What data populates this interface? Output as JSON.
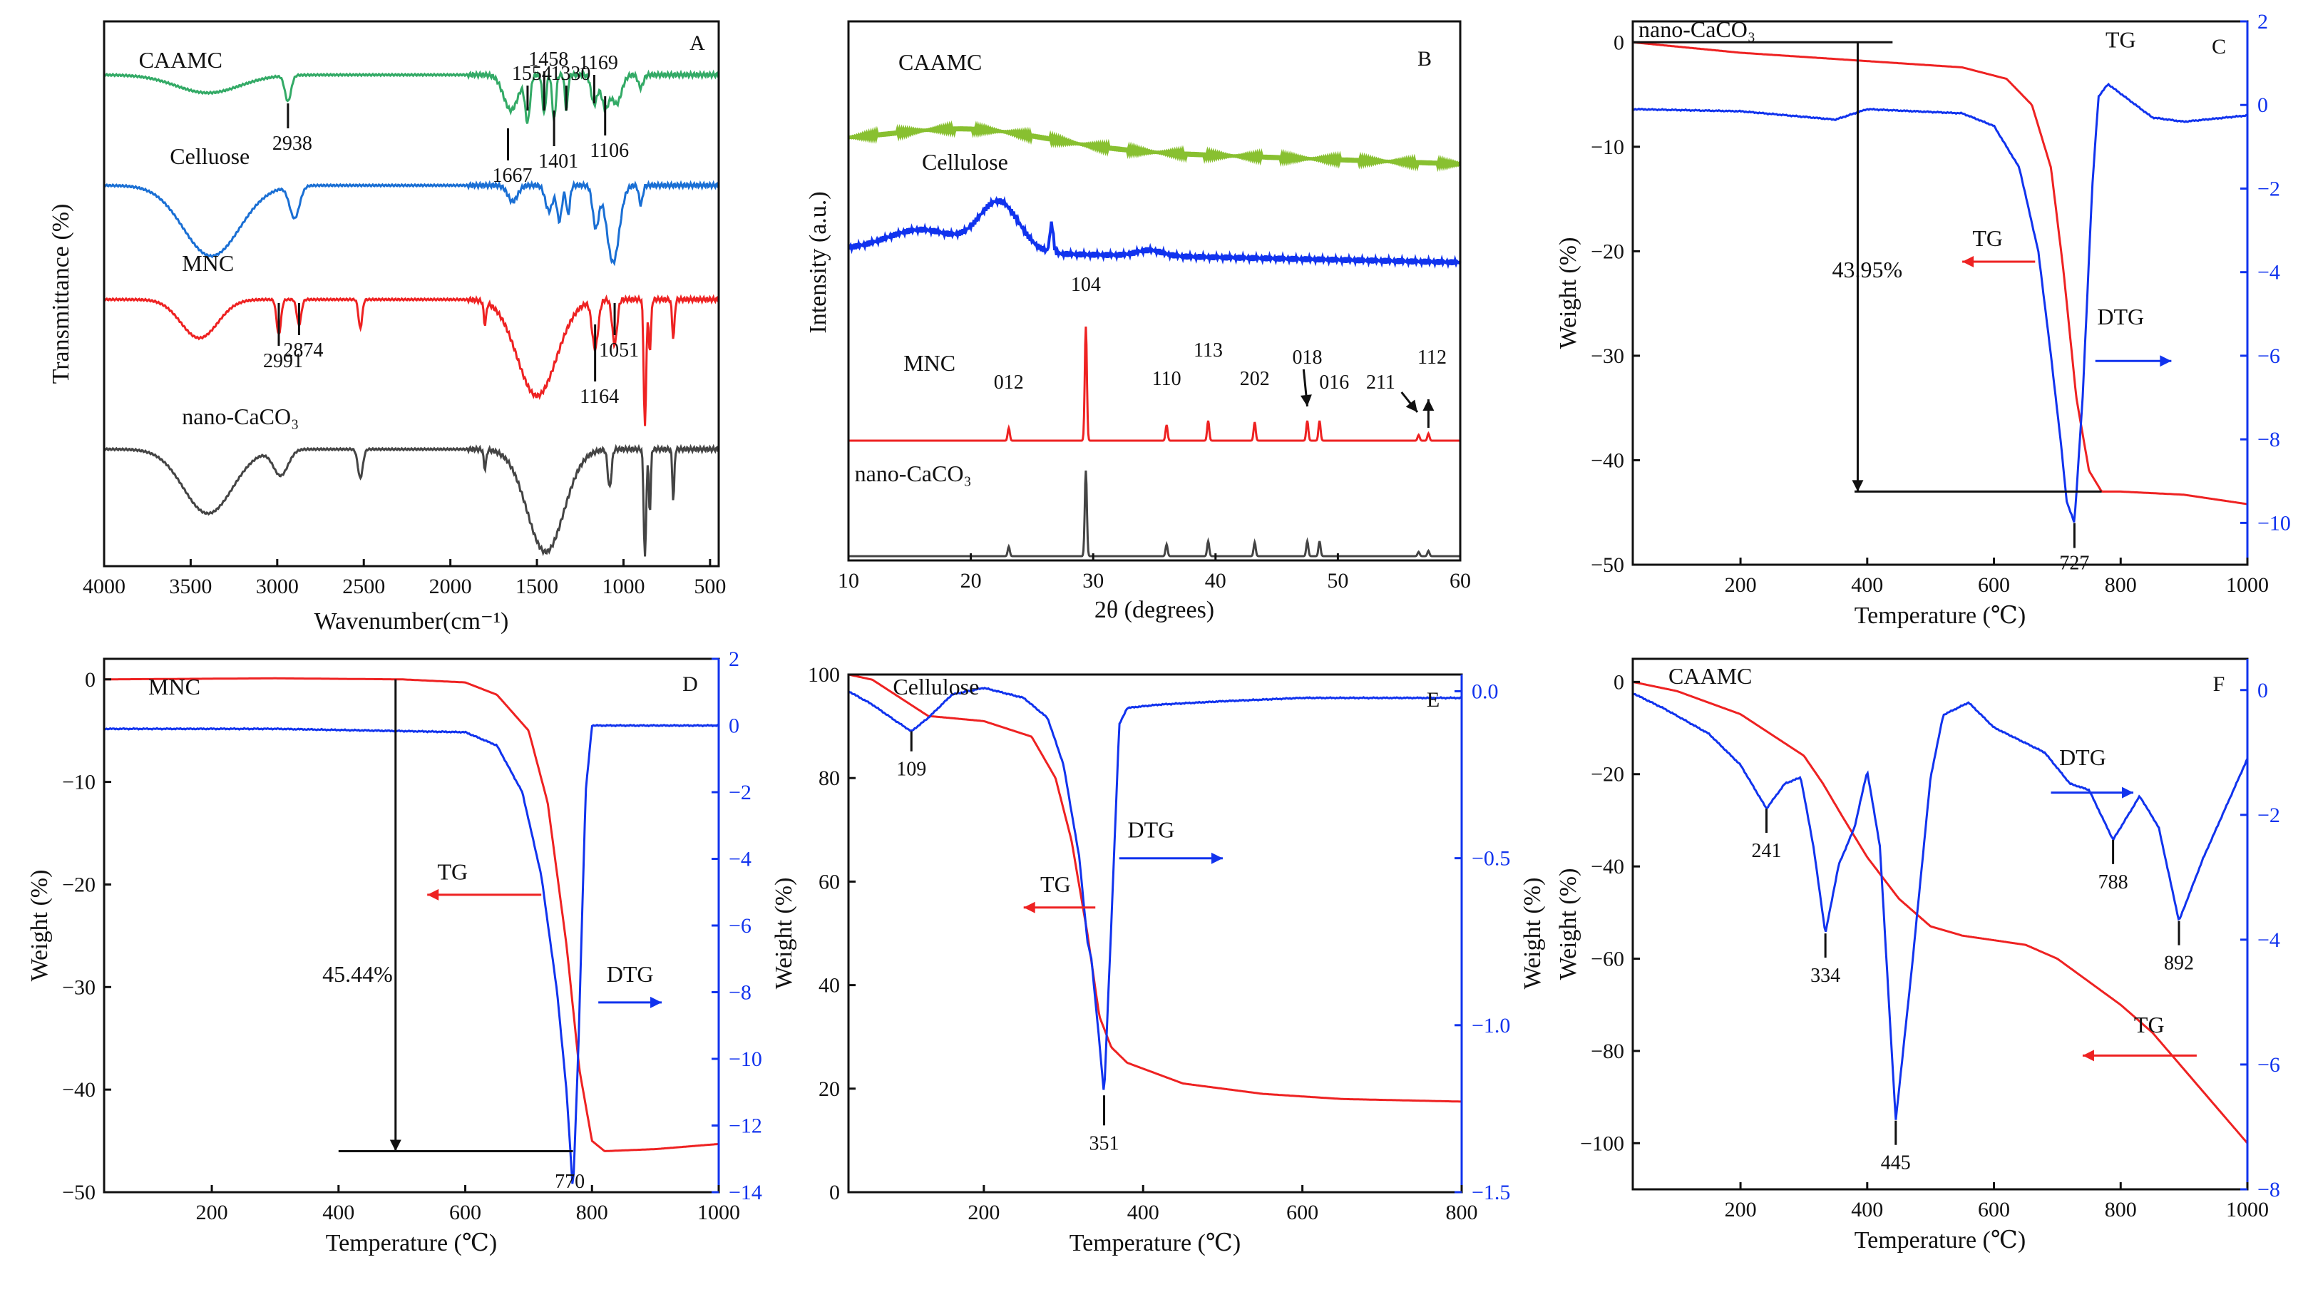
{
  "figure": {
    "description_panels": [
      "A",
      "B",
      "C",
      "D",
      "E",
      "F"
    ]
  },
  "colors": {
    "axis": "#111111",
    "red": "#ee2222",
    "blue": "#1133ee",
    "green": "#33aa66",
    "ftir_blue": "#1a6fd4",
    "lime": "#88c030",
    "dark": "#444444"
  },
  "chart_data": [
    {
      "panel": "A",
      "type": "line",
      "title": "",
      "xlabel": "Wavenumber(cm⁻¹)",
      "ylabel": "Transmittance (%)",
      "xlim": [
        4000,
        450
      ],
      "x_reversed": true,
      "ticks": [
        4000,
        3500,
        3000,
        2500,
        2000,
        1500,
        1000,
        500
      ],
      "series": [
        {
          "name": "CAAMC",
          "color": "green",
          "offset": 0.88,
          "peaks": [
            2938,
            1667,
            1554,
            1458,
            1401,
            1330,
            1169,
            1106
          ]
        },
        {
          "name": "Celluose",
          "color": "ftir_blue",
          "offset": 0.66,
          "peaks": []
        },
        {
          "name": "MNC",
          "color": "red",
          "offset": 0.44,
          "peaks": [
            2991,
            2874,
            1164,
            1051
          ]
        },
        {
          "name": "nano-CaCO₃",
          "color": "dark",
          "offset": 0.2,
          "peaks": []
        }
      ],
      "annotations": [
        "2938",
        "1667",
        "1554",
        "1458",
        "1401",
        "1330",
        "1169",
        "1106",
        "2991",
        "2874",
        "1164",
        "1051"
      ]
    },
    {
      "panel": "B",
      "type": "line",
      "title": "",
      "xlabel": "2θ (degrees)",
      "ylabel": "Intensity (a.u.)",
      "xlim": [
        10,
        60
      ],
      "ticks": [
        10,
        20,
        30,
        40,
        50,
        60
      ],
      "series": [
        {
          "name": "CAAMC",
          "color": "lime"
        },
        {
          "name": "Cellulose",
          "color": "blue"
        },
        {
          "name": "MNC",
          "color": "red"
        },
        {
          "name": "nano-CaCO₃",
          "color": "dark"
        }
      ],
      "calcite_peaks": [
        {
          "hkl": "012",
          "two_theta": 23.1
        },
        {
          "hkl": "104",
          "two_theta": 29.4
        },
        {
          "hkl": "110",
          "two_theta": 36.0
        },
        {
          "hkl": "113",
          "two_theta": 39.4
        },
        {
          "hkl": "202",
          "two_theta": 43.2
        },
        {
          "hkl": "018",
          "two_theta": 47.5
        },
        {
          "hkl": "016",
          "two_theta": 48.5
        },
        {
          "hkl": "211",
          "two_theta": 56.6
        },
        {
          "hkl": "112",
          "two_theta": 57.4
        }
      ]
    },
    {
      "panel": "C",
      "type": "line",
      "sample": "nano-CaCO₃",
      "xlabel": "Temperature (℃)",
      "ylabel": "Weight (%)",
      "xlim": [
        30,
        1000
      ],
      "ylim_left": [
        -50,
        2
      ],
      "ylim_right": [
        -11,
        2
      ],
      "xticks": [
        200,
        400,
        600,
        800,
        1000
      ],
      "yticks_left": [
        0,
        -10,
        -20,
        -30,
        -40,
        -50
      ],
      "yticks_right": [
        2,
        0,
        -2,
        -4,
        -6,
        -8,
        -10
      ],
      "tg": {
        "x": [
          30,
          200,
          400,
          550,
          620,
          660,
          690,
          710,
          730,
          750,
          770,
          800,
          900,
          1000
        ],
        "y": [
          0,
          -1.0,
          -1.8,
          -2.4,
          -3.5,
          -6,
          -12,
          -22,
          -34,
          -41,
          -43,
          -43,
          -43.3,
          -44.2
        ]
      },
      "dtg": {
        "x": [
          30,
          200,
          350,
          400,
          550,
          600,
          640,
          670,
          690,
          705,
          715,
          727,
          740,
          755,
          765,
          780,
          850,
          900,
          1000
        ],
        "y": [
          -0.1,
          -0.15,
          -0.35,
          -0.1,
          -0.2,
          -0.5,
          -1.5,
          -3.5,
          -6,
          -8,
          -9.5,
          -10,
          -7,
          -2,
          0.2,
          0.5,
          -0.3,
          -0.4,
          -0.25
        ]
      },
      "labels": {
        "tg": "TG",
        "dtg": "DTG",
        "mass_loss": "43.95%",
        "peak": "727"
      }
    },
    {
      "panel": "D",
      "type": "line",
      "sample": "MNC",
      "xlabel": "Temperature (℃)",
      "ylabel": "Weight (%)",
      "xlim": [
        30,
        1000
      ],
      "ylim_left": [
        -50,
        2
      ],
      "ylim_right": [
        -14,
        2
      ],
      "xticks": [
        200,
        400,
        600,
        800,
        1000
      ],
      "yticks_left": [
        0,
        -10,
        -20,
        -30,
        -40,
        -50
      ],
      "yticks_right": [
        2,
        0,
        -2,
        -4,
        -6,
        -8,
        -10,
        -12,
        -14
      ],
      "tg": {
        "x": [
          30,
          300,
          500,
          600,
          650,
          700,
          730,
          760,
          780,
          800,
          820,
          900,
          1000
        ],
        "y": [
          0,
          0.1,
          0,
          -0.3,
          -1.5,
          -5,
          -12,
          -26,
          -38,
          -45,
          -46,
          -45.8,
          -45.3
        ]
      },
      "dtg": {
        "x": [
          30,
          300,
          600,
          650,
          690,
          720,
          745,
          760,
          770,
          778,
          790,
          800,
          850,
          1000
        ],
        "y": [
          -0.1,
          -0.1,
          -0.2,
          -0.6,
          -2,
          -4.5,
          -8,
          -11,
          -14,
          -10,
          -2,
          0,
          0,
          0
        ]
      },
      "labels": {
        "tg": "TG",
        "dtg": "DTG",
        "mass_loss": "45.44%",
        "peak": "770"
      }
    },
    {
      "panel": "E",
      "type": "line",
      "sample": "Cellulose",
      "xlabel": "Temperature (℃)",
      "ylabel": "Weight (%)",
      "ylabel_right": "Weight (%)",
      "xlim": [
        30,
        800
      ],
      "ylim_left": [
        0,
        100
      ],
      "ylim_right": [
        -1.5,
        0.05
      ],
      "xticks": [
        200,
        400,
        600,
        800
      ],
      "yticks_left": [
        0,
        20,
        40,
        60,
        80,
        100
      ],
      "yticks_right": [
        0.0,
        -0.5,
        -1.0,
        -1.5
      ],
      "tg": {
        "x": [
          30,
          60,
          90,
          130,
          200,
          260,
          290,
          310,
          330,
          345,
          360,
          380,
          450,
          550,
          650,
          800
        ],
        "y": [
          100,
          99,
          96,
          92,
          91,
          88,
          80,
          68,
          50,
          34,
          28,
          25,
          21,
          19,
          18,
          17.5
        ]
      },
      "dtg": {
        "x": [
          30,
          60,
          90,
          109,
          130,
          160,
          200,
          250,
          280,
          300,
          320,
          330,
          335,
          345,
          351,
          360,
          370,
          380,
          420,
          500,
          600,
          800
        ],
        "y": [
          0,
          -0.04,
          -0.09,
          -0.12,
          -0.08,
          -0.01,
          0.01,
          -0.02,
          -0.08,
          -0.22,
          -0.5,
          -0.75,
          -0.8,
          -1.05,
          -1.21,
          -0.7,
          -0.1,
          -0.05,
          -0.04,
          -0.03,
          -0.02,
          -0.02
        ]
      },
      "labels": {
        "tg": "TG",
        "dtg": "DTG",
        "peak1": "109",
        "peak2": "351"
      }
    },
    {
      "panel": "F",
      "type": "line",
      "sample": "CAAMC",
      "xlabel": "Temperature (℃)",
      "ylabel": "Weight (%)",
      "xlim": [
        30,
        1000
      ],
      "ylim_left": [
        -110,
        5
      ],
      "ylim_right": [
        -8,
        0.5
      ],
      "xticks": [
        200,
        400,
        600,
        800,
        1000
      ],
      "yticks_left": [
        0,
        -20,
        -40,
        -60,
        -80,
        -100
      ],
      "yticks_right": [
        0,
        -2,
        -4,
        -6,
        -8
      ],
      "tg": {
        "x": [
          30,
          100,
          200,
          300,
          330,
          360,
          400,
          450,
          500,
          550,
          650,
          700,
          750,
          800,
          850,
          900,
          950,
          1000
        ],
        "y": [
          0,
          -2,
          -7,
          -16,
          -22,
          -29,
          -38,
          -47,
          -53,
          -55,
          -57,
          -60,
          -65,
          -70,
          -76,
          -84,
          -92,
          -100
        ]
      },
      "dtg": {
        "x": [
          30,
          80,
          150,
          200,
          241,
          270,
          295,
          315,
          334,
          355,
          380,
          400,
          420,
          445,
          470,
          500,
          520,
          560,
          600,
          680,
          720,
          750,
          788,
          830,
          860,
          892,
          930,
          1000
        ],
        "y": [
          -0.05,
          -0.3,
          -0.7,
          -1.2,
          -1.9,
          -1.5,
          -1.4,
          -2.5,
          -3.9,
          -2.8,
          -2.2,
          -1.3,
          -2.5,
          -6.9,
          -4.5,
          -1.4,
          -0.4,
          -0.2,
          -0.6,
          -1.0,
          -1.5,
          -1.6,
          -2.4,
          -1.7,
          -2.2,
          -3.7,
          -2.7,
          -1.1
        ]
      },
      "labels": {
        "tg": "TG",
        "dtg": "DTG",
        "peaks": [
          "241",
          "334",
          "445",
          "788",
          "892"
        ]
      }
    }
  ]
}
